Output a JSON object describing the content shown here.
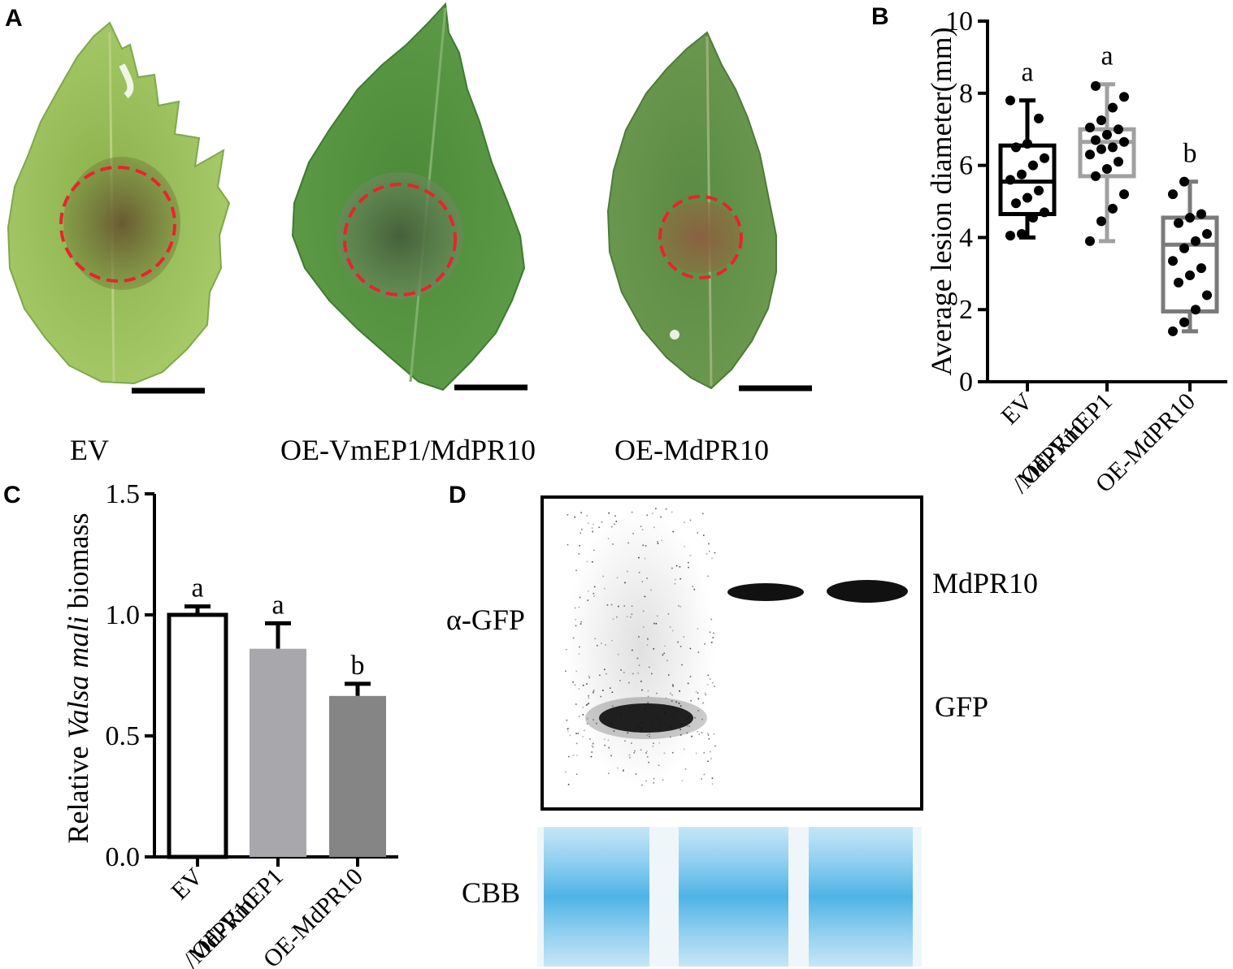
{
  "panel_letters": {
    "a": "A",
    "b": "B",
    "c": "C",
    "d": "D"
  },
  "panel_a": {
    "leaf_labels": [
      "EV",
      "OE-VmEP1/MdPR10",
      "OE-MdPR10"
    ]
  },
  "panel_d": {
    "antibody_label": "α-GFP",
    "band_labels": [
      "MdPR10",
      "GFP"
    ],
    "stain_label": "CBB"
  },
  "colors": {
    "lesion_circle": "#e8242a",
    "leaf_light": "#9bc35a",
    "leaf_dark": "#4f8a3c",
    "box_ev": "#000000",
    "box_oe_both": "#a0a0a0",
    "box_oe_pr10": "#7a7a7a",
    "bar_oe_both": "#a8a8ac",
    "bar_oe_pr10": "#858585",
    "cbb_blue": "#52b8e8"
  },
  "chart_data": [
    {
      "panel": "B",
      "type": "box",
      "ylabel": "Average lesion diameter(mm)",
      "ylim": [
        0,
        10
      ],
      "yticks": [
        "0",
        "2",
        "4",
        "6",
        "8",
        "10"
      ],
      "categories": [
        {
          "lines": [
            "EV"
          ],
          "italic": [
            false
          ]
        },
        {
          "lines": [
            "OE-VmEP1",
            "/MdPR10"
          ],
          "italic": [
            false,
            false
          ]
        },
        {
          "lines": [
            "OE-MdPR10"
          ],
          "italic": [
            false
          ]
        }
      ],
      "significance": [
        "a",
        "a",
        "b"
      ],
      "boxes": [
        {
          "min": 4.0,
          "q1": 4.65,
          "median": 5.55,
          "q3": 6.55,
          "max": 7.8
        },
        {
          "min": 3.9,
          "q1": 5.7,
          "median": 6.65,
          "q3": 7.0,
          "max": 8.25
        },
        {
          "min": 1.4,
          "q1": 1.95,
          "median": 3.8,
          "q3": 4.55,
          "max": 5.55
        }
      ],
      "points": [
        [
          4.05,
          4.1,
          4.55,
          4.7,
          4.95,
          5.1,
          5.3,
          5.6,
          5.75,
          6.0,
          6.2,
          6.5,
          6.6,
          7.3,
          7.8
        ],
        [
          3.9,
          4.45,
          4.8,
          5.2,
          5.7,
          5.9,
          6.1,
          6.3,
          6.45,
          6.5,
          6.65,
          6.7,
          6.85,
          7.0,
          7.05,
          7.25,
          7.6,
          7.9,
          8.2
        ],
        [
          1.4,
          1.65,
          2.0,
          2.4,
          2.75,
          2.95,
          3.15,
          3.35,
          3.7,
          3.9,
          4.1,
          4.4,
          4.55,
          4.65,
          5.2,
          5.55
        ]
      ]
    },
    {
      "panel": "C",
      "type": "bar",
      "ylabel_parts": [
        "Relative ",
        "Valsa mali",
        " biomass"
      ],
      "ylim": [
        0,
        1.5
      ],
      "yticks": [
        "0.0",
        "0.5",
        "1.0",
        "1.5"
      ],
      "categories": [
        {
          "lines": [
            "EV"
          ],
          "italic": [
            false
          ]
        },
        {
          "lines": [
            "OE-VmEP1",
            "/MdPR10"
          ],
          "italic": [
            false,
            false
          ]
        },
        {
          "lines": [
            "OE-MdPR10"
          ],
          "italic": [
            false
          ]
        }
      ],
      "values": [
        1.0,
        0.86,
        0.665
      ],
      "errors": [
        0.035,
        0.105,
        0.05
      ],
      "significance": [
        "a",
        "a",
        "b"
      ]
    }
  ]
}
